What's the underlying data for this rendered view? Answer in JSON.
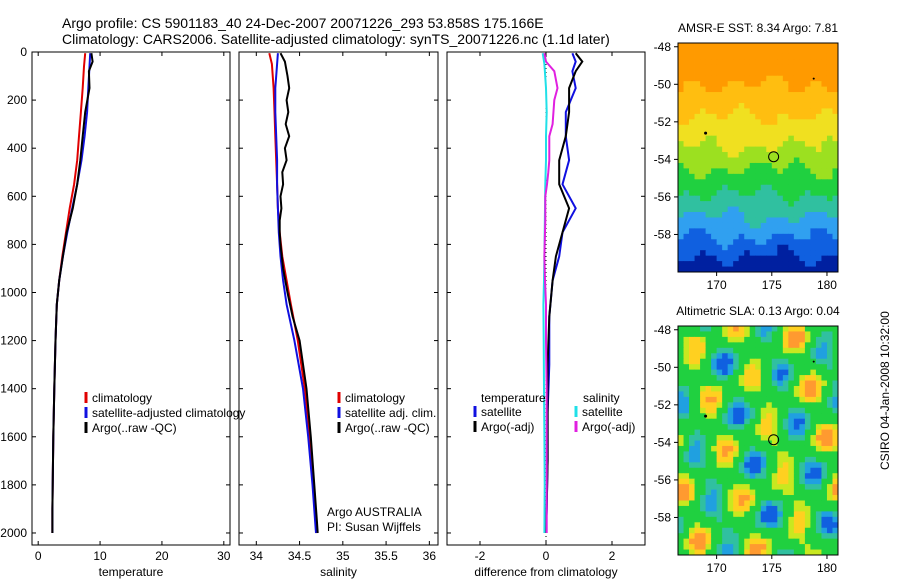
{
  "header": {
    "line1": "Argo profile: CS 5901183_40 24-Dec-2007 20071226_293 53.858S 175.166E",
    "line2": "Climatology: CARS2006. Satellite-adjusted climatology: synTS_20071226.nc (1.1d later)"
  },
  "colors": {
    "climatology": "#e00000",
    "satellite": "#1010e0",
    "argo": "#000000",
    "sat_diff_s": "#20e0e8",
    "argo_diff_s": "#e020e0"
  },
  "side_label": "CSIRO 04-Jan-2008 10:32:00",
  "chart_data": [
    {
      "type": "line",
      "xlabel": "temperature",
      "xlim": [
        -1,
        31
      ],
      "xticks": [
        "0",
        "10",
        "20",
        "30"
      ],
      "ylim": [
        2050,
        0
      ],
      "yticks": [
        "0",
        "200",
        "400",
        "600",
        "800",
        "1000",
        "1200",
        "1400",
        "1600",
        "1800",
        "2000"
      ],
      "legend": [
        {
          "label": "climatology",
          "color": "#e00000"
        },
        {
          "label": "satellite-adjusted climatology",
          "color": "#1010e0"
        },
        {
          "label": "Argo(..raw -QC)",
          "color": "#000000"
        }
      ],
      "series": [
        {
          "name": "climatology",
          "color": "#e00000",
          "points": [
            [
              7.6,
              5
            ],
            [
              7.4,
              60
            ],
            [
              7.2,
              150
            ],
            [
              6.9,
              250
            ],
            [
              6.6,
              350
            ],
            [
              6.3,
              450
            ],
            [
              5.8,
              550
            ],
            [
              5.1,
              650
            ],
            [
              4.5,
              750
            ],
            [
              3.9,
              850
            ],
            [
              3.4,
              950
            ],
            [
              3.0,
              1050
            ],
            [
              2.8,
              1200
            ],
            [
              2.6,
              1400
            ],
            [
              2.45,
              1600
            ],
            [
              2.35,
              1800
            ],
            [
              2.3,
              1900
            ],
            [
              2.3,
              2000
            ]
          ]
        },
        {
          "name": "satellite-adjusted climatology",
          "color": "#1010e0",
          "points": [
            [
              8.4,
              5
            ],
            [
              8.3,
              60
            ],
            [
              8.1,
              150
            ],
            [
              7.9,
              250
            ],
            [
              7.5,
              350
            ],
            [
              7.0,
              450
            ],
            [
              6.3,
              550
            ],
            [
              5.5,
              650
            ],
            [
              4.7,
              750
            ],
            [
              4.0,
              850
            ],
            [
              3.4,
              950
            ],
            [
              3.0,
              1050
            ],
            [
              2.8,
              1200
            ],
            [
              2.6,
              1400
            ],
            [
              2.45,
              1600
            ],
            [
              2.35,
              1800
            ],
            [
              2.3,
              1900
            ],
            [
              2.3,
              2000
            ]
          ]
        },
        {
          "name": "Argo(..raw -QC)",
          "color": "#000000",
          "points": [
            [
              8.6,
              5
            ],
            [
              8.8,
              40
            ],
            [
              8.2,
              80
            ],
            [
              8.3,
              150
            ],
            [
              7.6,
              250
            ],
            [
              7.2,
              350
            ],
            [
              6.8,
              450
            ],
            [
              6.3,
              550
            ],
            [
              5.6,
              650
            ],
            [
              4.6,
              750
            ],
            [
              4.0,
              850
            ],
            [
              3.4,
              950
            ],
            [
              3.0,
              1050
            ],
            [
              2.8,
              1200
            ],
            [
              2.6,
              1400
            ],
            [
              2.45,
              1600
            ],
            [
              2.35,
              1800
            ],
            [
              2.3,
              1900
            ],
            [
              2.3,
              2000
            ]
          ]
        }
      ]
    },
    {
      "type": "line",
      "xlabel": "salinity",
      "xlim": [
        33.8,
        36.1
      ],
      "xticks": [
        "34",
        "34.5",
        "35",
        "35.5",
        "36"
      ],
      "ylim": [
        2050,
        0
      ],
      "legend": [
        {
          "label": "climatology",
          "color": "#e00000"
        },
        {
          "label": "satellite adj. clim.",
          "color": "#1010e0"
        },
        {
          "label": "Argo(..raw -QC)",
          "color": "#000000"
        }
      ],
      "annotations": [
        "Argo AUSTRALIA",
        "PI: Susan Wijffels"
      ],
      "series": [
        {
          "name": "climatology",
          "color": "#e00000",
          "points": [
            [
              34.15,
              5
            ],
            [
              34.18,
              50
            ],
            [
              34.2,
              150
            ],
            [
              34.21,
              250
            ],
            [
              34.22,
              350
            ],
            [
              34.23,
              450
            ],
            [
              34.24,
              550
            ],
            [
              34.25,
              650
            ],
            [
              34.27,
              750
            ],
            [
              34.3,
              850
            ],
            [
              34.35,
              950
            ],
            [
              34.4,
              1050
            ],
            [
              34.48,
              1200
            ],
            [
              34.56,
              1400
            ],
            [
              34.62,
              1600
            ],
            [
              34.66,
              1800
            ],
            [
              34.69,
              1950
            ],
            [
              34.7,
              2000
            ]
          ]
        },
        {
          "name": "satellite adj. clim.",
          "color": "#1010e0",
          "points": [
            [
              34.25,
              5
            ],
            [
              34.24,
              50
            ],
            [
              34.22,
              150
            ],
            [
              34.22,
              250
            ],
            [
              34.23,
              350
            ],
            [
              34.24,
              450
            ],
            [
              34.24,
              550
            ],
            [
              34.25,
              650
            ],
            [
              34.26,
              750
            ],
            [
              34.28,
              850
            ],
            [
              34.31,
              950
            ],
            [
              34.35,
              1050
            ],
            [
              34.44,
              1200
            ],
            [
              34.54,
              1400
            ],
            [
              34.6,
              1600
            ],
            [
              34.65,
              1800
            ],
            [
              34.68,
              1950
            ],
            [
              34.69,
              2000
            ]
          ]
        },
        {
          "name": "Argo(..raw -QC)",
          "color": "#000000",
          "points": [
            [
              34.28,
              5
            ],
            [
              34.33,
              40
            ],
            [
              34.36,
              100
            ],
            [
              34.38,
              150
            ],
            [
              34.35,
              200
            ],
            [
              34.37,
              250
            ],
            [
              34.34,
              300
            ],
            [
              34.38,
              350
            ],
            [
              34.33,
              400
            ],
            [
              34.35,
              450
            ],
            [
              34.3,
              500
            ],
            [
              34.31,
              550
            ],
            [
              34.28,
              600
            ],
            [
              34.29,
              650
            ],
            [
              34.27,
              700
            ],
            [
              34.27,
              750
            ],
            [
              34.28,
              800
            ],
            [
              34.31,
              900
            ],
            [
              34.36,
              1000
            ],
            [
              34.42,
              1100
            ],
            [
              34.5,
              1200
            ],
            [
              34.58,
              1400
            ],
            [
              34.63,
              1600
            ],
            [
              34.67,
              1800
            ],
            [
              34.7,
              1950
            ],
            [
              34.71,
              2000
            ]
          ]
        }
      ]
    },
    {
      "type": "line",
      "xlabel": "difference from climatology",
      "xlim": [
        -3,
        3
      ],
      "xticks": [
        "-2",
        "0",
        "2"
      ],
      "ylim": [
        2050,
        0
      ],
      "legend_left_title": "temperature",
      "legend_right_title": "salinity",
      "legend": [
        {
          "label": "satellite",
          "color": "#1010e0"
        },
        {
          "label": "Argo(-adj)",
          "color": "#000000"
        },
        {
          "label": "satellite",
          "color": "#20e0e8"
        },
        {
          "label": "Argo(-adj)",
          "color": "#e020e0"
        }
      ],
      "series": [
        {
          "name": "temperature satellite",
          "color": "#1010e0",
          "points": [
            [
              0.8,
              5
            ],
            [
              0.9,
              40
            ],
            [
              0.8,
              80
            ],
            [
              0.9,
              150
            ],
            [
              0.6,
              250
            ],
            [
              0.6,
              350
            ],
            [
              0.7,
              450
            ],
            [
              0.5,
              550
            ],
            [
              0.9,
              650
            ],
            [
              0.5,
              750
            ],
            [
              0.4,
              850
            ],
            [
              0.2,
              950
            ],
            [
              0.1,
              1100
            ],
            [
              0.1,
              1300
            ],
            [
              0.05,
              1500
            ],
            [
              0.05,
              1700
            ],
            [
              0.02,
              1900
            ],
            [
              0.0,
              2000
            ]
          ]
        },
        {
          "name": "temperature Argo(-adj)",
          "color": "#000000",
          "points": [
            [
              0.9,
              5
            ],
            [
              1.1,
              40
            ],
            [
              0.9,
              80
            ],
            [
              0.7,
              150
            ],
            [
              0.7,
              250
            ],
            [
              0.6,
              350
            ],
            [
              0.4,
              450
            ],
            [
              0.4,
              550
            ],
            [
              0.7,
              650
            ],
            [
              0.5,
              750
            ],
            [
              0.3,
              850
            ],
            [
              0.2,
              950
            ],
            [
              0.1,
              1100
            ],
            [
              0.05,
              1300
            ],
            [
              0.05,
              1500
            ],
            [
              0.05,
              1700
            ],
            [
              0.02,
              1900
            ],
            [
              0.0,
              2000
            ]
          ]
        },
        {
          "name": "salinity satellite",
          "color": "#20e0e8",
          "points": [
            [
              -0.1,
              5
            ],
            [
              -0.05,
              50
            ],
            [
              0.0,
              150
            ],
            [
              0.02,
              250
            ],
            [
              0.0,
              350
            ],
            [
              0.0,
              450
            ],
            [
              -0.02,
              550
            ],
            [
              -0.03,
              650
            ],
            [
              -0.04,
              750
            ],
            [
              -0.05,
              850
            ],
            [
              -0.06,
              950
            ],
            [
              -0.08,
              1050
            ],
            [
              -0.07,
              1200
            ],
            [
              -0.06,
              1400
            ],
            [
              -0.05,
              1600
            ],
            [
              -0.04,
              1800
            ],
            [
              -0.05,
              2000
            ]
          ]
        },
        {
          "name": "salinity Argo(-adj)",
          "color": "#e020e0",
          "points": [
            [
              -0.05,
              5
            ],
            [
              0.0,
              40
            ],
            [
              0.25,
              80
            ],
            [
              0.35,
              150
            ],
            [
              0.25,
              200
            ],
            [
              0.2,
              300
            ],
            [
              0.1,
              350
            ],
            [
              0.1,
              400
            ],
            [
              0.1,
              450
            ],
            [
              0.07,
              500
            ],
            [
              0.03,
              550
            ],
            [
              -0.02,
              600
            ],
            [
              -0.02,
              700
            ],
            [
              -0.03,
              750
            ],
            [
              -0.05,
              850
            ],
            [
              -0.03,
              950
            ],
            [
              0.0,
              1050
            ],
            [
              0.0,
              1200
            ],
            [
              0.02,
              1400
            ],
            [
              0.02,
              1600
            ],
            [
              0.02,
              1800
            ],
            [
              0.02,
              2000
            ]
          ]
        }
      ]
    },
    {
      "type": "heatmap",
      "title": "AMSR-E SST: 8.34  Argo: 7.81",
      "xlim": [
        166.5,
        181
      ],
      "ylim": [
        -60,
        -47.8
      ],
      "xticks": [
        "170",
        "175",
        "180"
      ],
      "yticks": [
        "-48",
        "-50",
        "-52",
        "-54",
        "-56",
        "-58"
      ],
      "marker": [
        175.166,
        -53.858
      ]
    },
    {
      "type": "heatmap",
      "title": "Altimetric SLA: 0.13  Argo: 0.04",
      "xlim": [
        166.5,
        181
      ],
      "ylim": [
        -60,
        -47.8
      ],
      "xticks": [
        "170",
        "175",
        "180"
      ],
      "yticks": [
        "-48",
        "-50",
        "-52",
        "-54",
        "-56",
        "-58"
      ],
      "marker": [
        175.166,
        -53.858
      ]
    }
  ]
}
